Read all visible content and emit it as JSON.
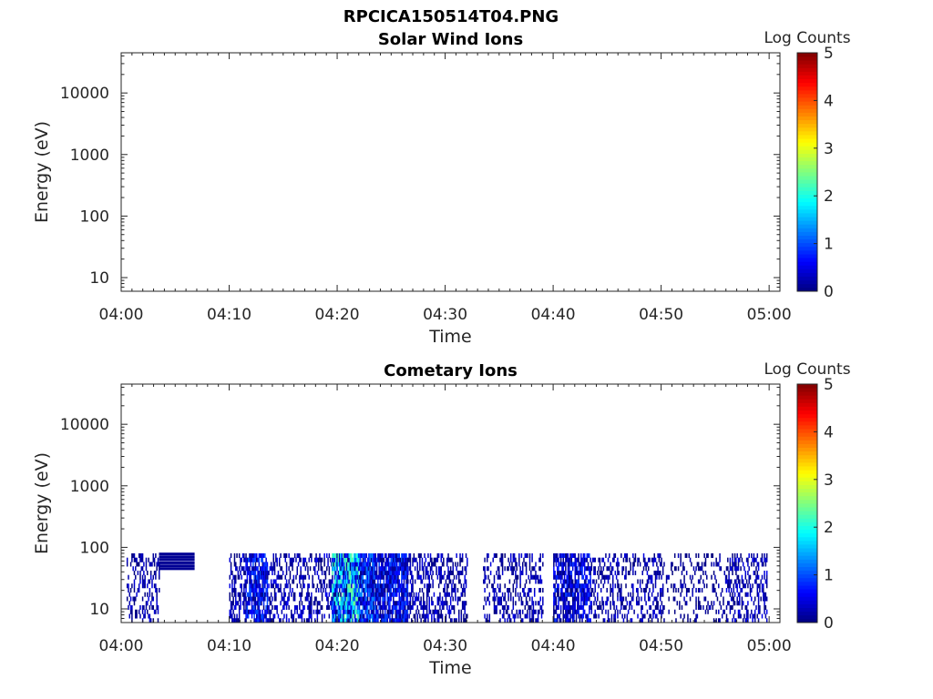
{
  "figure": {
    "filename_title": "RPCICA150514T04.PNG"
  },
  "chart_data": [
    {
      "type": "heatmap",
      "title": "Solar Wind Ions",
      "xlabel": "Time",
      "ylabel": "Energy (eV)",
      "x_range": [
        "04:00",
        "05:01"
      ],
      "x_ticks": [
        "04:00",
        "04:10",
        "04:20",
        "04:30",
        "04:40",
        "04:50",
        "05:00"
      ],
      "y_scale": "log",
      "y_range": [
        6,
        45000
      ],
      "y_ticks": [
        "10",
        "100",
        "1000",
        "10000"
      ],
      "colorbar": {
        "label": "Log Counts",
        "range": [
          0,
          5
        ],
        "ticks": [
          "0",
          "1",
          "2",
          "3",
          "4",
          "5"
        ],
        "colormap": "jet"
      },
      "grid": false,
      "data_present": false,
      "strips": []
    },
    {
      "type": "heatmap",
      "title": "Cometary Ions",
      "xlabel": "Time",
      "ylabel": "Energy (eV)",
      "x_range": [
        "04:00",
        "05:01"
      ],
      "x_ticks": [
        "04:00",
        "04:10",
        "04:20",
        "04:30",
        "04:40",
        "04:50",
        "05:00"
      ],
      "y_scale": "log",
      "y_range": [
        6,
        45000
      ],
      "y_ticks": [
        "10",
        "100",
        "1000",
        "10000"
      ],
      "colorbar": {
        "label": "Log Counts",
        "range": [
          0,
          5
        ],
        "ticks": [
          "0",
          "1",
          "2",
          "3",
          "4",
          "5"
        ],
        "colormap": "jet"
      },
      "grid": false,
      "data_present": true,
      "energy_max_eV": 80,
      "energy_min_eV": 6,
      "note_bands": [
        {
          "start": "04:03.5",
          "end": "04:06.8",
          "energies_eV": [
            78,
            70,
            63,
            56,
            50,
            45
          ],
          "log_counts": 0.1
        }
      ],
      "strips": [
        {
          "start": "04:00.5",
          "end": "04:03.5",
          "density": 0.35,
          "mean_log_counts": 0.2,
          "peak_log_counts": 0.5
        },
        {
          "start": "04:10.0",
          "end": "04:11.5",
          "density": 0.45,
          "mean_log_counts": 0.2,
          "peak_log_counts": 0.6
        },
        {
          "start": "04:11.5",
          "end": "04:13.5",
          "density": 0.8,
          "mean_log_counts": 0.5,
          "peak_log_counts": 1.0
        },
        {
          "start": "04:13.5",
          "end": "04:19.5",
          "density": 0.4,
          "mean_log_counts": 0.2,
          "peak_log_counts": 0.6
        },
        {
          "start": "04:19.5",
          "end": "04:20.5",
          "density": 0.9,
          "mean_log_counts": 1.2,
          "peak_log_counts": 2.3
        },
        {
          "start": "04:20.5",
          "end": "04:22.0",
          "density": 0.95,
          "mean_log_counts": 1.3,
          "peak_log_counts": 2.4
        },
        {
          "start": "04:22.0",
          "end": "04:23.5",
          "density": 0.85,
          "mean_log_counts": 0.7,
          "peak_log_counts": 1.3
        },
        {
          "start": "04:23.5",
          "end": "04:26.5",
          "density": 0.85,
          "mean_log_counts": 0.5,
          "peak_log_counts": 1.0
        },
        {
          "start": "04:26.5",
          "end": "04:32.0",
          "density": 0.45,
          "mean_log_counts": 0.2,
          "peak_log_counts": 0.6
        },
        {
          "start": "04:33.5",
          "end": "04:39.0",
          "density": 0.35,
          "mean_log_counts": 0.2,
          "peak_log_counts": 0.5
        },
        {
          "start": "04:40.0",
          "end": "04:43.5",
          "density": 0.7,
          "mean_log_counts": 0.4,
          "peak_log_counts": 0.9
        },
        {
          "start": "04:43.5",
          "end": "04:50.0",
          "density": 0.35,
          "mean_log_counts": 0.2,
          "peak_log_counts": 0.5
        },
        {
          "start": "04:50.0",
          "end": "04:56.0",
          "density": 0.2,
          "mean_log_counts": 0.1,
          "peak_log_counts": 0.4
        },
        {
          "start": "04:56.0",
          "end": "04:59.8",
          "density": 0.4,
          "mean_log_counts": 0.2,
          "peak_log_counts": 0.6
        }
      ]
    }
  ]
}
